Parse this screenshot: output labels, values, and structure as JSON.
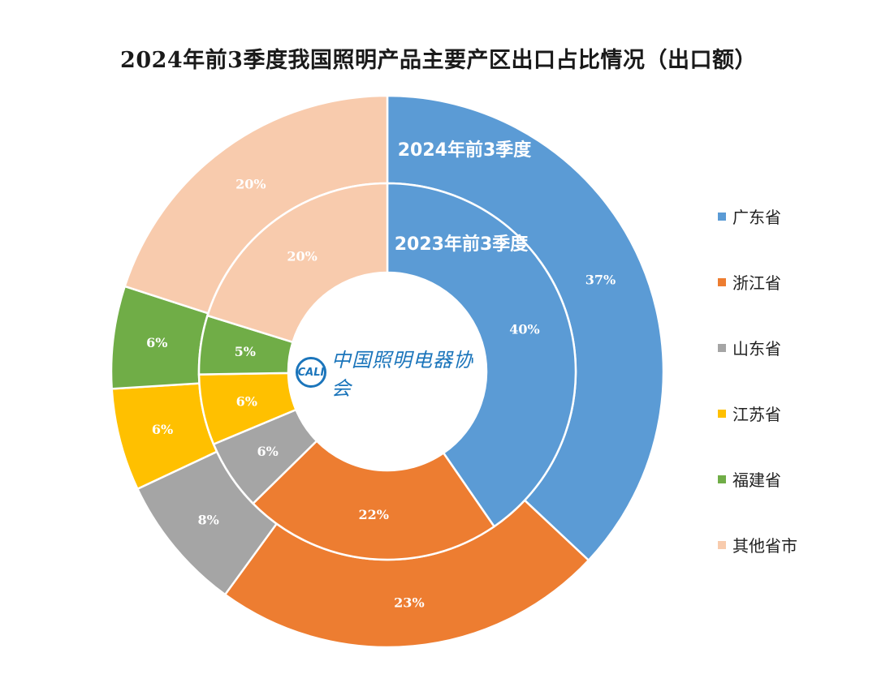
{
  "chart_data": {
    "type": "donut",
    "title": "2024年前3季度我国照明产品主要产区出口占比情况（出口额）",
    "categories": [
      "广东省",
      "浙江省",
      "山东省",
      "江苏省",
      "福建省",
      "其他省市"
    ],
    "colors": [
      "#5b9bd5",
      "#ed7d31",
      "#a5a5a5",
      "#ffc000",
      "#70ad47",
      "#f8cbad"
    ],
    "series": [
      {
        "name": "2024年前3季度",
        "values": [
          37,
          23,
          8,
          6,
          6,
          20
        ],
        "labels": [
          "37%",
          "23%",
          "8%",
          "6%",
          "6%",
          "20%"
        ]
      },
      {
        "name": "2023年前3季度",
        "values": [
          40,
          22,
          6,
          6,
          5,
          20
        ],
        "labels": [
          "40%",
          "22%",
          "6%",
          "6%",
          "5%",
          "20%"
        ]
      }
    ],
    "legend_position": "right"
  },
  "logo": {
    "mark": "CALI",
    "text": "中国照明电器协会"
  }
}
